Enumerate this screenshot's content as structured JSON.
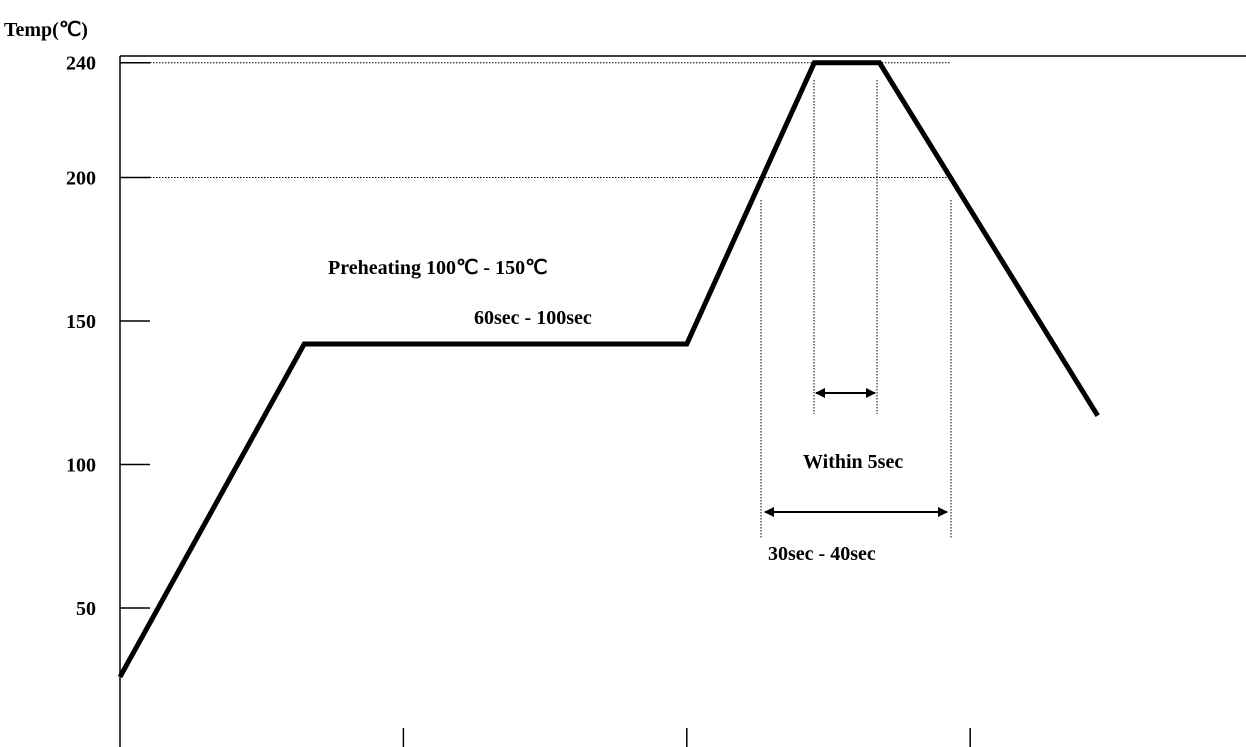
{
  "chart_data": {
    "type": "line",
    "title": "",
    "ylabel": "Temp(℃)",
    "xlabel": "",
    "ylim": [
      20,
      260
    ],
    "yticks": [
      50,
      100,
      150,
      200,
      240
    ],
    "ytick_labels": [
      "50",
      "100",
      "150",
      "200",
      "240"
    ],
    "x_tick_count": 3,
    "series": [
      {
        "values": [
          {
            "x": 0,
            "y": 26
          },
          {
            "x": 65,
            "y": 142
          },
          {
            "x": 200,
            "y": 142
          },
          {
            "x": 245,
            "y": 240
          },
          {
            "x": 268,
            "y": 240
          },
          {
            "x": 345,
            "y": 117
          }
        ]
      }
    ],
    "reference_lines": [
      240,
      200
    ],
    "annotations": {
      "preheat_line1": "Preheating 100℃ - 150℃",
      "preheat_line2": "60sec - 100sec",
      "peak_time": "Within 5sec",
      "above200_time": "30sec - 40sec"
    }
  }
}
